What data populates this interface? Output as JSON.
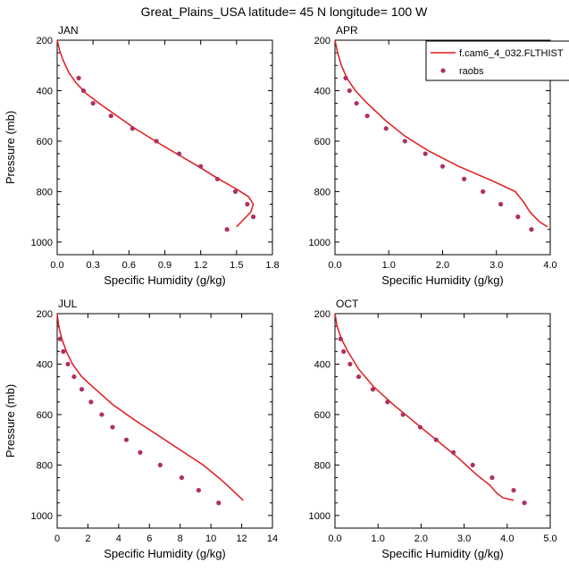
{
  "figure": {
    "title": "Great_Plains_USA  latitude= 45 N longitude= 100 W",
    "model_color": "#e31a1c",
    "obs_color": "#b03060"
  },
  "legend": {
    "model_label": "f.cam6_4_032.FLTHIST",
    "obs_label": "raobs"
  },
  "chart_data": [
    {
      "type": "line",
      "title": "JAN",
      "xlabel": "Specific Humidity (g/kg)",
      "ylabel": "Pressure (mb)",
      "xlim": [
        0,
        1.8
      ],
      "xticks": [
        "0.0",
        "0.3",
        "0.6",
        "0.9",
        "1.2",
        "1.5",
        "1.8"
      ],
      "xtick_values": [
        0,
        0.3,
        0.6,
        0.9,
        1.2,
        1.5,
        1.8
      ],
      "ylim": [
        200,
        1050
      ],
      "yticks": [
        200,
        400,
        600,
        800,
        1000
      ],
      "model": {
        "name": "f.cam6_4_032.FLTHIST",
        "x": [
          0.0,
          0.02,
          0.05,
          0.1,
          0.16,
          0.24,
          0.35,
          0.5,
          0.65,
          0.82,
          1.0,
          1.18,
          1.35,
          1.5,
          1.6,
          1.64,
          1.62,
          1.56,
          1.52,
          1.5
        ],
        "p": [
          200,
          240,
          280,
          330,
          370,
          410,
          450,
          500,
          550,
          600,
          650,
          700,
          750,
          790,
          820,
          850,
          880,
          910,
          930,
          940
        ]
      },
      "obs": {
        "name": "raobs",
        "x": [
          0.18,
          0.22,
          0.3,
          0.45,
          0.63,
          0.83,
          1.02,
          1.2,
          1.34,
          1.49,
          1.59,
          1.64,
          1.42
        ],
        "p": [
          350,
          400,
          450,
          500,
          550,
          600,
          650,
          700,
          750,
          800,
          850,
          900,
          950
        ]
      }
    },
    {
      "type": "line",
      "title": "APR",
      "xlabel": "Specific Humidity (g/kg)",
      "ylabel": "",
      "xlim": [
        0,
        4.0
      ],
      "xticks": [
        "0.0",
        "1.0",
        "2.0",
        "3.0",
        "4.0"
      ],
      "xtick_values": [
        0,
        1,
        2,
        3,
        4
      ],
      "ylim": [
        200,
        1050
      ],
      "yticks": [
        200,
        400,
        600,
        800,
        1000
      ],
      "model": {
        "name": "f.cam6_4_032.FLTHIST",
        "x": [
          0.0,
          0.05,
          0.12,
          0.22,
          0.38,
          0.6,
          0.95,
          1.3,
          1.75,
          2.3,
          2.95,
          3.35,
          3.5,
          3.62,
          3.8,
          3.95
        ],
        "p": [
          200,
          250,
          300,
          350,
          400,
          450,
          520,
          580,
          640,
          700,
          760,
          800,
          840,
          880,
          920,
          940
        ]
      },
      "obs": {
        "name": "raobs",
        "x": [
          0.2,
          0.27,
          0.4,
          0.6,
          0.95,
          1.3,
          1.68,
          2.0,
          2.4,
          2.75,
          3.08,
          3.4,
          3.65
        ],
        "p": [
          350,
          400,
          450,
          500,
          550,
          600,
          650,
          700,
          750,
          800,
          850,
          900,
          950
        ]
      }
    },
    {
      "type": "line",
      "title": "JUL",
      "xlabel": "Specific Humidity (g/kg)",
      "ylabel": "Pressure (mb)",
      "xlim": [
        0,
        14
      ],
      "xticks": [
        "0",
        "2",
        "4",
        "6",
        "8",
        "10",
        "12",
        "14"
      ],
      "xtick_values": [
        0,
        2,
        4,
        6,
        8,
        10,
        12,
        14
      ],
      "ylim": [
        200,
        1050
      ],
      "yticks": [
        200,
        400,
        600,
        800,
        1000
      ],
      "model": {
        "name": "f.cam6_4_032.FLTHIST",
        "x": [
          0.0,
          0.1,
          0.3,
          0.6,
          1.0,
          1.6,
          2.5,
          3.6,
          5.0,
          6.5,
          8.0,
          9.5,
          10.7,
          11.4,
          12.1
        ],
        "p": [
          200,
          250,
          300,
          350,
          400,
          450,
          500,
          560,
          620,
          680,
          740,
          800,
          860,
          900,
          940
        ]
      },
      "obs": {
        "name": "raobs",
        "x": [
          0.2,
          0.4,
          0.7,
          1.1,
          1.6,
          2.2,
          2.9,
          3.6,
          4.5,
          5.4,
          6.7,
          8.1,
          9.2,
          10.5
        ],
        "p": [
          300,
          350,
          400,
          450,
          500,
          550,
          600,
          650,
          700,
          750,
          800,
          850,
          900,
          950
        ]
      }
    },
    {
      "type": "line",
      "title": "OCT",
      "xlabel": "Specific Humidity (g/kg)",
      "ylabel": "",
      "xlim": [
        0,
        5.0
      ],
      "xticks": [
        "0.0",
        "1.0",
        "2.0",
        "3.0",
        "4.0",
        "5.0"
      ],
      "xtick_values": [
        0,
        1,
        2,
        3,
        4,
        5
      ],
      "ylim": [
        200,
        1050
      ],
      "yticks": [
        200,
        400,
        600,
        800,
        1000
      ],
      "model": {
        "name": "f.cam6_4_032.FLTHIST",
        "x": [
          0.0,
          0.05,
          0.15,
          0.3,
          0.55,
          0.9,
          1.35,
          1.85,
          2.35,
          2.85,
          3.3,
          3.6,
          3.75,
          3.9,
          4.15
        ],
        "p": [
          200,
          250,
          300,
          350,
          420,
          490,
          560,
          630,
          700,
          770,
          840,
          880,
          910,
          930,
          940
        ]
      },
      "obs": {
        "name": "raobs",
        "x": [
          0.13,
          0.2,
          0.35,
          0.55,
          0.88,
          1.22,
          1.58,
          1.98,
          2.35,
          2.75,
          3.2,
          3.65,
          4.15,
          4.4
        ],
        "p": [
          300,
          350,
          400,
          450,
          500,
          550,
          600,
          650,
          700,
          750,
          800,
          850,
          900,
          950
        ]
      }
    }
  ]
}
